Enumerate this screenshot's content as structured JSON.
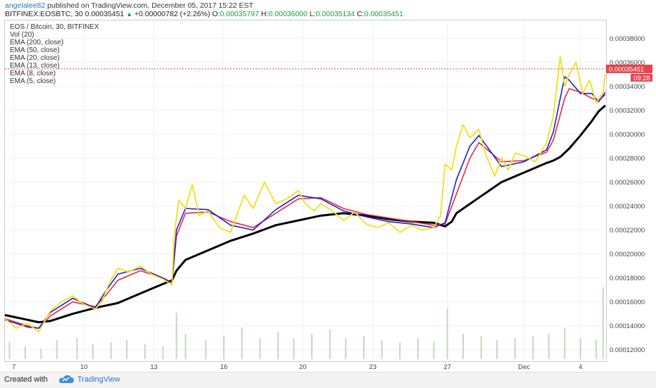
{
  "header": {
    "publisher": "angelalee82",
    "published_text": "published on TradingView.com, December 05, 2017 15:22 EST",
    "symbol": "BITFINEX:EOSBTC, 30",
    "last": "0.00035451",
    "change": "+0.00000782 (+2.26%)",
    "o_label": "O:",
    "o_val": "0.00035797",
    "h_label": "H:",
    "h_val": "0.00036000",
    "l_label": "L:",
    "l_val": "0.00035134",
    "c_label": "C:",
    "c_val": "0.00035451"
  },
  "legend": [
    "EOS / Bitcoin, 30, BITFINEX",
    "Vol (20)",
    "EMA (200, close)",
    "EMA (50, close)",
    "EMA (20, close)",
    "EMA (13, close)",
    "EMA (8, close)",
    "EMA (5, close)"
  ],
  "price_label": {
    "value": "0.00035451",
    "time": "09:28"
  },
  "footer": {
    "created": "Created with",
    "brand": "TradingView"
  },
  "colors": {
    "ema200": "#000000",
    "ema20": "#e8273b",
    "ema13": "#1f1fd0",
    "ema5": "#f2e01a",
    "price_tag": "#e4434d"
  },
  "chart_data": {
    "type": "line",
    "ylim": [
      0.000111,
      0.000395
    ],
    "y_ticks": [
      "0.00038000",
      "0.00036000",
      "0.00034000",
      "0.00032000",
      "0.00030000",
      "0.00028000",
      "0.00026000",
      "0.00024000",
      "0.00022000",
      "0.00020000",
      "0.00018000",
      "0.00016000",
      "0.00014000",
      "0.00012000"
    ],
    "y_tick_values": [
      0.00038,
      0.00036,
      0.00034,
      0.00032,
      0.0003,
      0.00028,
      0.00026,
      0.00024,
      0.00022,
      0.0002,
      0.00018,
      0.00016,
      0.00014,
      0.00012
    ],
    "x_ticks": [
      "7",
      "10",
      "13",
      "16",
      "20",
      "23",
      "27",
      "Dec",
      "4"
    ],
    "x_tick_pos": [
      0.4,
      3.5,
      6.6,
      9.7,
      13.2,
      16.3,
      19.6,
      23.0,
      25.5
    ],
    "x_range": [
      0,
      26.6
    ],
    "series": [
      {
        "name": "EMA (200, close)",
        "x": [
          0,
          1,
          1.5,
          2,
          3,
          4,
          5,
          6,
          7,
          7.4,
          7.6,
          8,
          9,
          10,
          11,
          12,
          13,
          14,
          15,
          16,
          17,
          18,
          19,
          19.5,
          19.8,
          20,
          21,
          22,
          23,
          23.5,
          24,
          24.3,
          24.6,
          25,
          25.5,
          26,
          26.3,
          26.6
        ],
        "y": [
          0.000149,
          0.000145,
          0.000143,
          0.000144,
          0.00015,
          0.000155,
          0.000159,
          0.000167,
          0.000175,
          0.000178,
          0.000186,
          0.000195,
          0.000203,
          0.000211,
          0.000217,
          0.000224,
          0.000228,
          0.000232,
          0.000234,
          0.000232,
          0.000229,
          0.000227,
          0.000226,
          0.000223,
          0.000227,
          0.000234,
          0.000247,
          0.00026,
          0.000268,
          0.000272,
          0.000276,
          0.000278,
          0.000281,
          0.000288,
          0.000299,
          0.000311,
          0.000319,
          0.000324
        ]
      },
      {
        "name": "EMA (20, close)",
        "x": [
          0,
          1,
          1.5,
          2,
          3,
          4,
          4.5,
          5,
          6,
          7,
          7.4,
          7.6,
          8,
          9,
          10,
          11,
          12,
          13,
          14,
          15,
          16,
          17,
          18,
          19,
          19.5,
          20,
          20.6,
          21,
          22,
          23,
          24,
          24.3,
          24.8,
          25,
          25.5,
          26,
          26.3,
          26.6
        ],
        "y": [
          0.000146,
          0.00014,
          0.000138,
          0.000148,
          0.00016,
          0.000156,
          0.000166,
          0.000178,
          0.000186,
          0.00018,
          0.000176,
          0.000215,
          0.000234,
          0.000235,
          0.000227,
          0.000222,
          0.000234,
          0.000246,
          0.000247,
          0.000238,
          0.000233,
          0.00023,
          0.000227,
          0.000224,
          0.000225,
          0.00025,
          0.00028,
          0.000293,
          0.000277,
          0.000278,
          0.000285,
          0.000295,
          0.00033,
          0.000338,
          0.000335,
          0.00033,
          0.000328,
          0.000333
        ]
      },
      {
        "name": "EMA (13, close)",
        "x": [
          0,
          1,
          1.5,
          2,
          3,
          4,
          4.5,
          5,
          6,
          7,
          7.4,
          7.6,
          8,
          9,
          10,
          11,
          12,
          13,
          14,
          15,
          16,
          17,
          18,
          19,
          19.5,
          20,
          20.6,
          21,
          22,
          23,
          24,
          24.3,
          24.8,
          25,
          25.5,
          26,
          26.3,
          26.6
        ],
        "y": [
          0.000145,
          0.000139,
          0.000138,
          0.000151,
          0.000163,
          0.000155,
          0.00017,
          0.000183,
          0.000188,
          0.00018,
          0.000176,
          0.00022,
          0.000238,
          0.000237,
          0.000224,
          0.00022,
          0.000237,
          0.000249,
          0.000246,
          0.000236,
          0.000231,
          0.000227,
          0.000225,
          0.000222,
          0.000226,
          0.000262,
          0.00029,
          0.000299,
          0.000273,
          0.000277,
          0.000287,
          0.000302,
          0.000348,
          0.000345,
          0.000334,
          0.000334,
          0.000327,
          0.000335
        ]
      },
      {
        "name": "EMA (5, close)",
        "x": [
          0,
          0.5,
          1,
          1.5,
          2,
          2.5,
          3,
          3.5,
          4,
          4.3,
          4.6,
          5,
          5.5,
          6,
          6.5,
          7,
          7.4,
          7.5,
          7.7,
          8,
          8.3,
          8.6,
          9,
          9.5,
          10,
          10.3,
          10.6,
          11,
          11.5,
          12,
          12.5,
          13,
          13.3,
          13.7,
          14,
          14.5,
          15,
          15.5,
          16,
          16.5,
          17,
          17.5,
          18,
          18.5,
          19,
          19.3,
          19.5,
          19.8,
          20,
          20.3,
          20.6,
          21,
          21.3,
          21.7,
          22,
          22.3,
          22.6,
          23,
          23.5,
          24,
          24.3,
          24.6,
          24.8,
          25,
          25.3,
          25.6,
          25.9,
          26.2,
          26.5,
          26.6
        ],
        "y": [
          0.000146,
          0.000138,
          0.000142,
          0.000135,
          0.000152,
          0.00016,
          0.000165,
          0.000158,
          0.000154,
          0.00016,
          0.000175,
          0.000188,
          0.000185,
          0.00019,
          0.000183,
          0.000179,
          0.000174,
          0.000215,
          0.000245,
          0.000238,
          0.000258,
          0.000232,
          0.000236,
          0.000222,
          0.000218,
          0.000234,
          0.000249,
          0.000238,
          0.00026,
          0.000242,
          0.000246,
          0.000253,
          0.000242,
          0.000236,
          0.000242,
          0.000236,
          0.000228,
          0.000235,
          0.000225,
          0.000222,
          0.000226,
          0.000218,
          0.000224,
          0.00022,
          0.000222,
          0.000232,
          0.000275,
          0.00027,
          0.00029,
          0.000308,
          0.000297,
          0.000304,
          0.000283,
          0.000265,
          0.00028,
          0.00027,
          0.000284,
          0.000282,
          0.000277,
          0.000293,
          0.000315,
          0.000365,
          0.00034,
          0.00035,
          0.00036,
          0.000334,
          0.000345,
          0.000326,
          0.000335,
          0.00035
        ]
      }
    ],
    "volume_x": [
      0.2,
      0.9,
      1.6,
      2.3,
      3.2,
      3.9,
      4.7,
      5.4,
      6.2,
      7.0,
      7.6,
      8.0,
      8.9,
      9.7,
      10.5,
      11.3,
      12.1,
      12.8,
      13.6,
      14.4,
      15.1,
      15.9,
      16.7,
      17.5,
      18.3,
      19.0,
      19.6,
      20.3,
      21.1,
      21.8,
      22.6,
      23.4,
      24.1,
      24.8,
      25.5,
      26.2,
      26.5
    ],
    "volume": [
      0.8,
      0.6,
      0.5,
      0.9,
      1.0,
      0.7,
      0.8,
      0.9,
      0.7,
      0.6,
      2.2,
      1.2,
      0.9,
      1.1,
      1.5,
      1.0,
      1.3,
      1.0,
      1.2,
      1.4,
      1.0,
      1.1,
      0.9,
      0.8,
      1.0,
      0.8,
      2.4,
      1.2,
      1.1,
      0.9,
      1.0,
      1.1,
      1.2,
      1.5,
      1.0,
      0.9,
      3.4
    ]
  }
}
